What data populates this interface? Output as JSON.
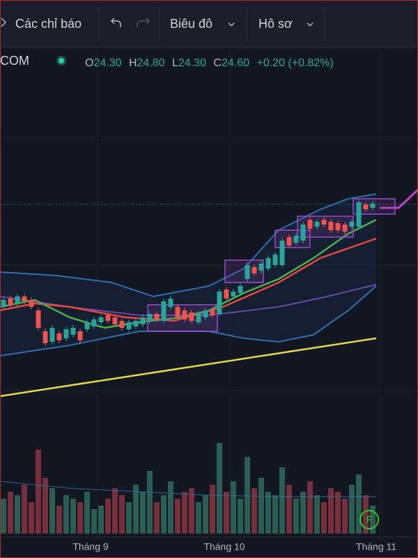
{
  "toolbar": {
    "indicators": "Các chỉ báo",
    "chart": "Biêu đô",
    "profile": "Hô sơ"
  },
  "legend": {
    "symbol": "COM",
    "ohlc": [
      {
        "label": "O",
        "value": "24.30"
      },
      {
        "label": "H",
        "value": "24.80"
      },
      {
        "label": "L",
        "value": "24.30"
      },
      {
        "label": "C",
        "value": "24.60"
      }
    ],
    "change": "+0.20 (+0.82%)"
  },
  "x_axis": {
    "labels": [
      "Tháng 9",
      "Tháng 10",
      "Tháng 11"
    ]
  },
  "badge": "F"
}
